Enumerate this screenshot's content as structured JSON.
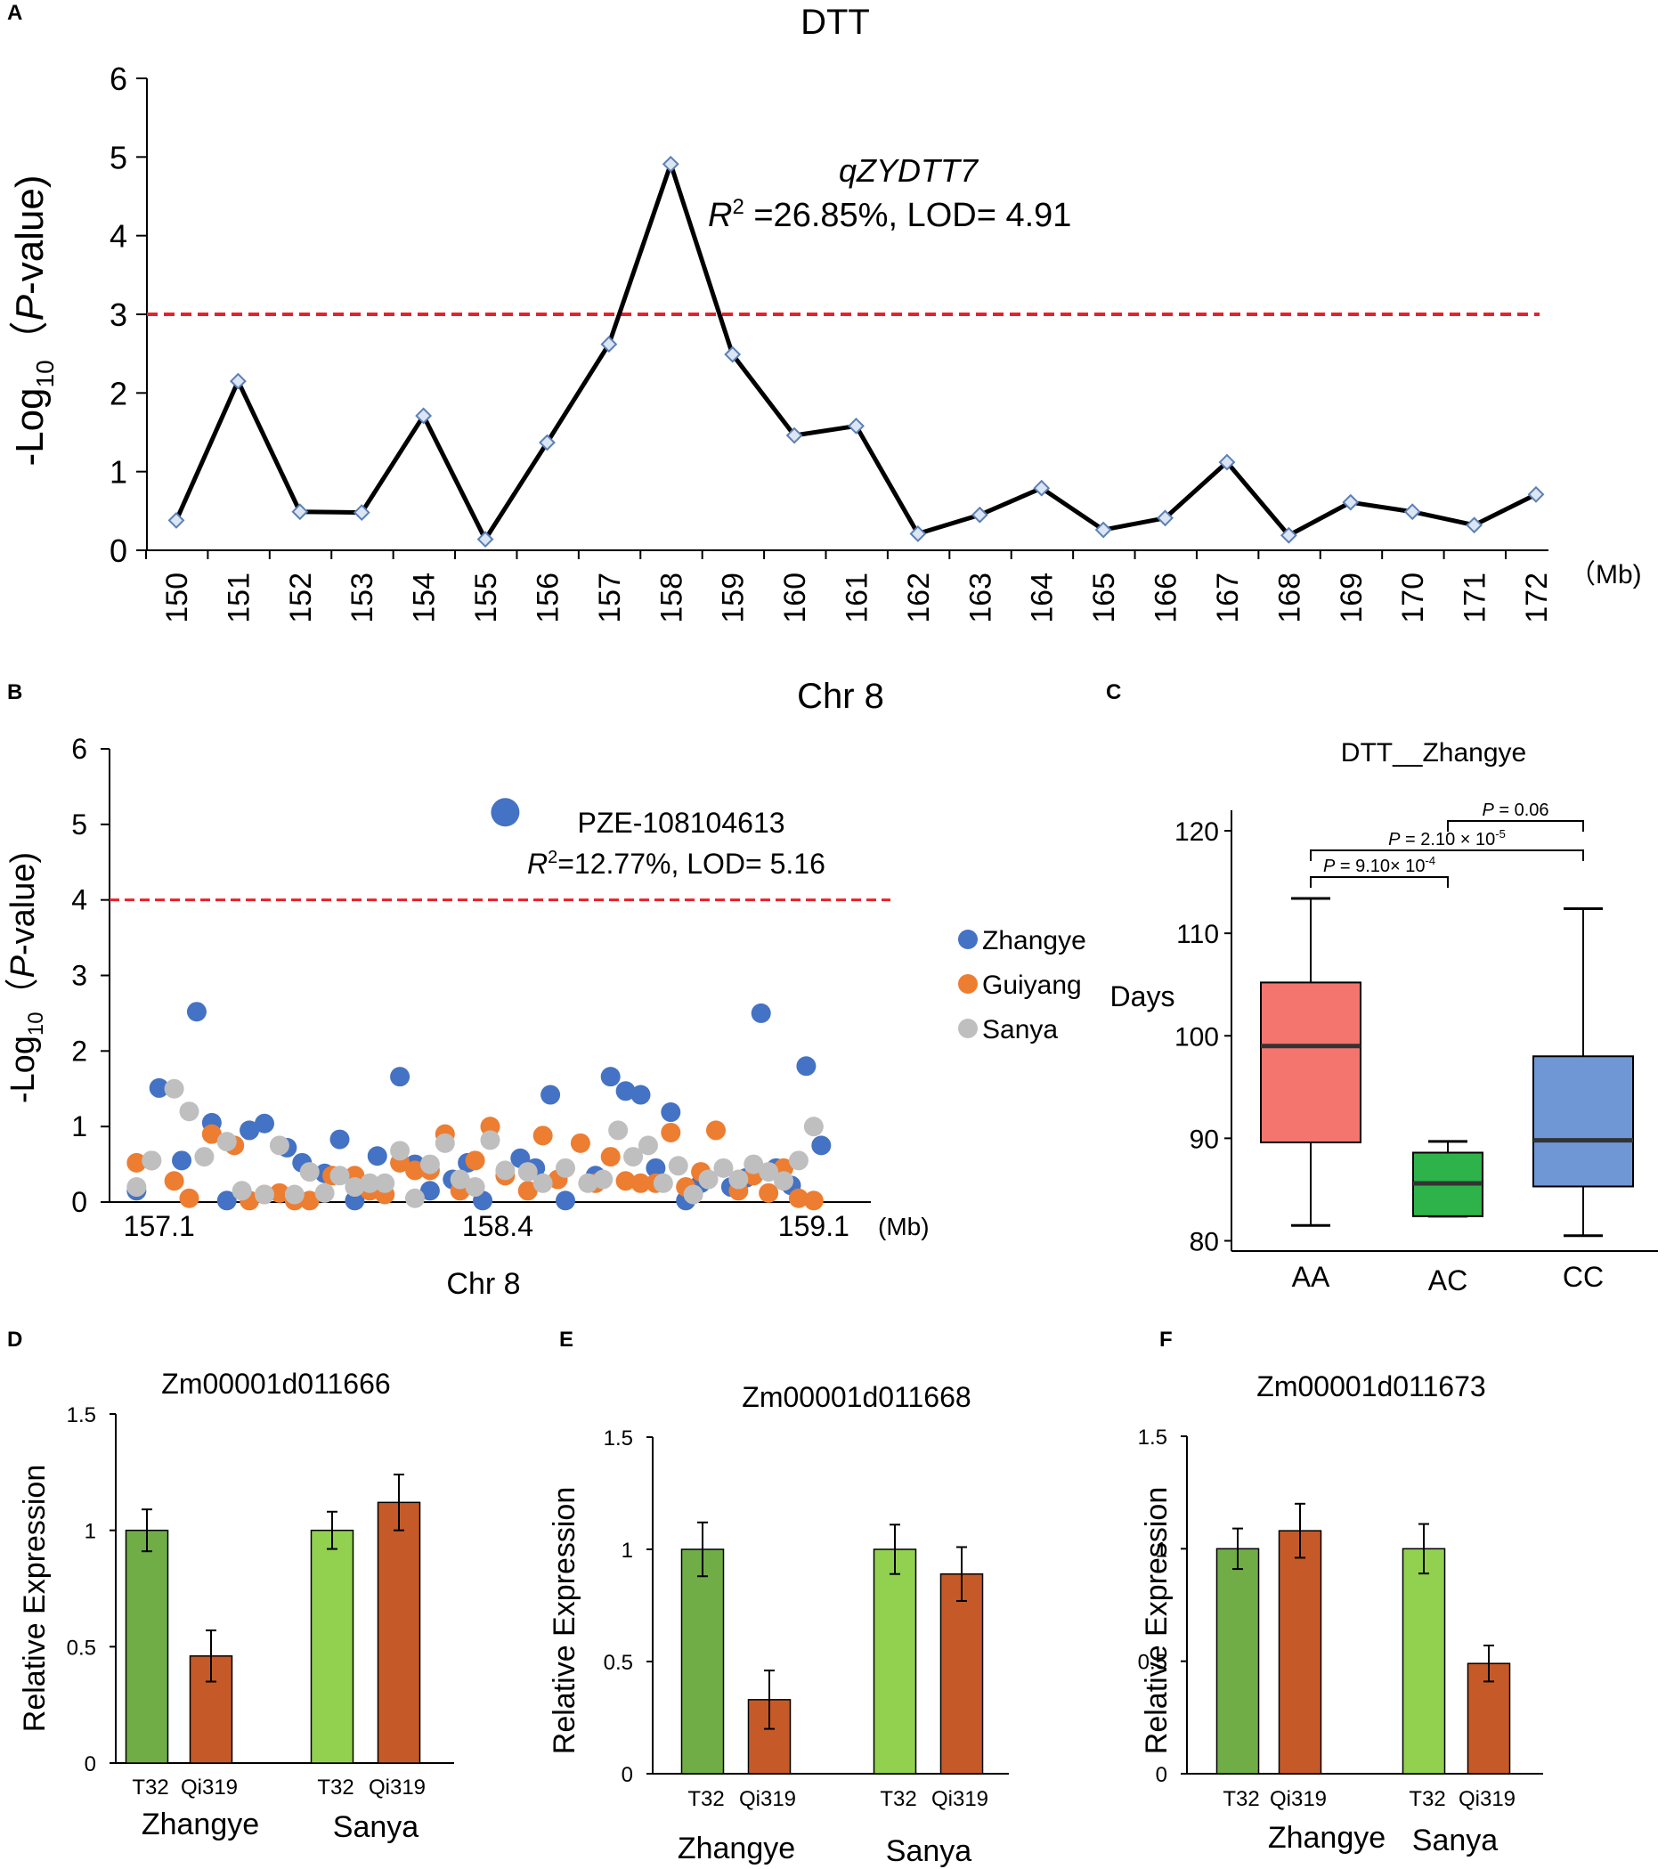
{
  "chart_data": [
    {
      "panel": "A",
      "type": "line",
      "title": "DTT",
      "ylabel_prefix": "-Log",
      "ylabel_sub": "10",
      "ylabel_paren_open": "（",
      "ylabel_italic": "P",
      "ylabel_suffix": "-value)",
      "unit_label": "（Mb)",
      "ylim": [
        0,
        6
      ],
      "yticks": [
        0,
        1,
        2,
        3,
        4,
        5,
        6
      ],
      "x": [
        150,
        151,
        152,
        153,
        154,
        155,
        156,
        157,
        158,
        159,
        160,
        161,
        162,
        163,
        164,
        165,
        166,
        167,
        168,
        169,
        170,
        171,
        172
      ],
      "values": [
        0.38,
        2.15,
        0.49,
        0.48,
        1.71,
        0.14,
        1.37,
        2.62,
        4.91,
        2.49,
        1.46,
        1.58,
        0.21,
        0.45,
        0.79,
        0.26,
        0.41,
        1.12,
        0.19,
        0.61,
        0.49,
        0.32,
        0.71
      ],
      "threshold": 3,
      "annotation_name": "qZYDTT7",
      "annotation_r2_label": "R",
      "annotation_r2_sup": "2",
      "annotation_rest": " =26.85%, LOD= 4.91",
      "colors": {
        "line": "#000000",
        "marker_fill": "#dbe5f3",
        "marker_stroke": "#5b7fb6",
        "threshold": "#e8202a"
      }
    },
    {
      "panel": "B",
      "type": "scatter",
      "title": "Chr 8",
      "xlabel": "Chr 8",
      "ylabel_prefix": "-Log",
      "ylabel_sub": "10",
      "ylabel_paren_open": "（",
      "ylabel_italic": "P",
      "ylabel_suffix": "-value)",
      "unit_label": "(Mb)",
      "ylim": [
        0,
        6
      ],
      "yticks": [
        0,
        1,
        2,
        3,
        4,
        5,
        6
      ],
      "xlim": [
        157.1,
        159.6
      ],
      "xticks": [
        "157.1",
        "158.4",
        "159.1"
      ],
      "xtick_index_positions": [
        0.06,
        0.51,
        0.93
      ],
      "threshold": 4,
      "annotation_marker": "PZE-108104613",
      "annotation_r2_label": "R",
      "annotation_r2_sup": "2",
      "annotation_rest": "=12.77%, LOD= 5.16",
      "peak": {
        "x_index": 0.52,
        "y": 5.16
      },
      "legend": [
        "Zhangye",
        "Guiyang",
        "Sanya"
      ],
      "series": [
        {
          "name": "Zhangye",
          "color": "#4472c4",
          "points": [
            [
              0.03,
              0.15
            ],
            [
              0.06,
              1.51
            ],
            [
              0.09,
              0.55
            ],
            [
              0.11,
              2.52
            ],
            [
              0.13,
              1.05
            ],
            [
              0.15,
              0.02
            ],
            [
              0.18,
              0.95
            ],
            [
              0.2,
              1.04
            ],
            [
              0.23,
              0.72
            ],
            [
              0.25,
              0.52
            ],
            [
              0.28,
              0.38
            ],
            [
              0.3,
              0.83
            ],
            [
              0.32,
              0.02
            ],
            [
              0.35,
              0.61
            ],
            [
              0.38,
              1.66
            ],
            [
              0.4,
              0.5
            ],
            [
              0.42,
              0.15
            ],
            [
              0.45,
              0.3
            ],
            [
              0.47,
              0.52
            ],
            [
              0.49,
              0.02
            ],
            [
              0.54,
              0.58
            ],
            [
              0.56,
              0.45
            ],
            [
              0.58,
              1.42
            ],
            [
              0.6,
              0.02
            ],
            [
              0.64,
              0.35
            ],
            [
              0.66,
              1.66
            ],
            [
              0.68,
              1.47
            ],
            [
              0.7,
              1.42
            ],
            [
              0.72,
              0.45
            ],
            [
              0.74,
              1.19
            ],
            [
              0.76,
              0.02
            ],
            [
              0.78,
              0.25
            ],
            [
              0.82,
              0.2
            ],
            [
              0.84,
              0.32
            ],
            [
              0.86,
              2.5
            ],
            [
              0.88,
              0.45
            ],
            [
              0.9,
              0.22
            ],
            [
              0.92,
              1.8
            ],
            [
              0.94,
              0.75
            ]
          ]
        },
        {
          "name": "Guiyang",
          "color": "#ed7d31",
          "points": [
            [
              0.03,
              0.52
            ],
            [
              0.05,
              0.55
            ],
            [
              0.08,
              0.28
            ],
            [
              0.1,
              0.05
            ],
            [
              0.13,
              0.9
            ],
            [
              0.16,
              0.75
            ],
            [
              0.18,
              0.02
            ],
            [
              0.2,
              0.1
            ],
            [
              0.22,
              0.12
            ],
            [
              0.24,
              0.02
            ],
            [
              0.26,
              0.02
            ],
            [
              0.29,
              0.35
            ],
            [
              0.32,
              0.35
            ],
            [
              0.34,
              0.15
            ],
            [
              0.36,
              0.1
            ],
            [
              0.38,
              0.52
            ],
            [
              0.4,
              0.42
            ],
            [
              0.42,
              0.42
            ],
            [
              0.44,
              0.9
            ],
            [
              0.46,
              0.15
            ],
            [
              0.48,
              0.55
            ],
            [
              0.5,
              1.0
            ],
            [
              0.52,
              0.35
            ],
            [
              0.55,
              0.15
            ],
            [
              0.57,
              0.88
            ],
            [
              0.59,
              0.3
            ],
            [
              0.62,
              0.78
            ],
            [
              0.64,
              0.25
            ],
            [
              0.66,
              0.6
            ],
            [
              0.68,
              0.28
            ],
            [
              0.7,
              0.25
            ],
            [
              0.72,
              0.25
            ],
            [
              0.74,
              0.92
            ],
            [
              0.76,
              0.2
            ],
            [
              0.78,
              0.4
            ],
            [
              0.8,
              0.95
            ],
            [
              0.83,
              0.15
            ],
            [
              0.85,
              0.35
            ],
            [
              0.87,
              0.12
            ],
            [
              0.89,
              0.45
            ],
            [
              0.91,
              0.05
            ],
            [
              0.93,
              0.02
            ]
          ]
        },
        {
          "name": "Sanya",
          "color": "#bfbfbf",
          "points": [
            [
              0.03,
              0.2
            ],
            [
              0.05,
              0.55
            ],
            [
              0.08,
              1.5
            ],
            [
              0.1,
              1.2
            ],
            [
              0.12,
              0.6
            ],
            [
              0.15,
              0.8
            ],
            [
              0.17,
              0.15
            ],
            [
              0.2,
              0.1
            ],
            [
              0.22,
              0.75
            ],
            [
              0.24,
              0.1
            ],
            [
              0.26,
              0.4
            ],
            [
              0.28,
              0.12
            ],
            [
              0.3,
              0.35
            ],
            [
              0.32,
              0.2
            ],
            [
              0.34,
              0.25
            ],
            [
              0.36,
              0.25
            ],
            [
              0.38,
              0.68
            ],
            [
              0.4,
              0.05
            ],
            [
              0.42,
              0.5
            ],
            [
              0.44,
              0.78
            ],
            [
              0.46,
              0.3
            ],
            [
              0.48,
              0.2
            ],
            [
              0.5,
              0.82
            ],
            [
              0.52,
              0.42
            ],
            [
              0.55,
              0.4
            ],
            [
              0.57,
              0.25
            ],
            [
              0.6,
              0.45
            ],
            [
              0.63,
              0.25
            ],
            [
              0.65,
              0.3
            ],
            [
              0.67,
              0.95
            ],
            [
              0.69,
              0.6
            ],
            [
              0.71,
              0.75
            ],
            [
              0.73,
              0.25
            ],
            [
              0.75,
              0.48
            ],
            [
              0.77,
              0.1
            ],
            [
              0.79,
              0.3
            ],
            [
              0.81,
              0.45
            ],
            [
              0.83,
              0.3
            ],
            [
              0.85,
              0.5
            ],
            [
              0.87,
              0.4
            ],
            [
              0.89,
              0.28
            ],
            [
              0.91,
              0.55
            ],
            [
              0.93,
              1.0
            ]
          ]
        }
      ]
    },
    {
      "panel": "C",
      "type": "box",
      "title": "DTT__Zhangye",
      "ylabel": "Days",
      "ylim": [
        79,
        122
      ],
      "yticks": [
        80,
        90,
        100,
        110,
        120
      ],
      "categories": [
        "AA",
        "AC",
        "CC"
      ],
      "boxes": [
        {
          "name": "AA",
          "min": 81.5,
          "q1": 89.6,
          "median": 99.0,
          "q3": 105.2,
          "max": 113.4,
          "color": "#f4756e"
        },
        {
          "name": "AC",
          "min": 82.4,
          "q1": 82.4,
          "median": 85.6,
          "q3": 88.6,
          "max": 89.7,
          "color": "#2eb34a"
        },
        {
          "name": "CC",
          "min": 80.5,
          "q1": 85.3,
          "median": 89.8,
          "q3": 98.0,
          "max": 112.4,
          "color": "#6f97d6"
        }
      ],
      "brackets": [
        {
          "from": "AA",
          "to": "AC",
          "prefix": "P",
          "text": " = 9.10× 10",
          "sup": "-4"
        },
        {
          "from": "AA",
          "to": "CC",
          "prefix": "P",
          "text": " = 2.10 × 10",
          "sup": "-5"
        },
        {
          "from": "AC",
          "to": "CC",
          "prefix": "P",
          "text": " = 0.06",
          "sup": ""
        }
      ]
    },
    {
      "panel": "D",
      "type": "bar",
      "title": "Zm00001d011666",
      "ylabel": "Relative Expression",
      "ylim": [
        0,
        1.5
      ],
      "yticks": [
        "0",
        "0.5",
        "1",
        "1.5"
      ],
      "groups": [
        "Zhangye",
        "Sanya"
      ],
      "bar_labels": [
        "T32",
        "Qi319"
      ],
      "series": [
        {
          "name": "T32",
          "values": [
            1.0,
            1.0
          ],
          "errors": [
            0.09,
            0.08
          ]
        },
        {
          "name": "Qi319",
          "values": [
            0.46,
            1.12
          ],
          "errors": [
            0.11,
            0.12
          ]
        }
      ],
      "colors": {
        "t32_zhangye": "#70ad47",
        "t32_sanya": "#92d050",
        "qi319": "#c55a28"
      }
    },
    {
      "panel": "E",
      "type": "bar",
      "title": "Zm00001d011668",
      "ylabel": "Relative Expression",
      "ylim": [
        0,
        1.5
      ],
      "yticks": [
        "0",
        "0.5",
        "1",
        "1.5"
      ],
      "groups": [
        "Zhangye",
        "Sanya"
      ],
      "bar_labels": [
        "T32",
        "Qi319"
      ],
      "series": [
        {
          "name": "T32",
          "values": [
            1.0,
            1.0
          ],
          "errors": [
            0.12,
            0.11
          ]
        },
        {
          "name": "Qi319",
          "values": [
            0.33,
            0.89
          ],
          "errors": [
            0.13,
            0.12
          ]
        }
      ],
      "colors": {
        "t32_zhangye": "#70ad47",
        "t32_sanya": "#92d050",
        "qi319": "#c55a28"
      }
    },
    {
      "panel": "F",
      "type": "bar",
      "title": "Zm00001d011673",
      "ylabel": "Relative Expression",
      "ylim": [
        0,
        1.5
      ],
      "yticks": [
        "0",
        "0.5",
        "1",
        "1.5"
      ],
      "groups": [
        "Zhangye",
        "Sanya"
      ],
      "bar_labels": [
        "T32",
        "Qi319"
      ],
      "series": [
        {
          "name": "T32",
          "values": [
            1.0,
            1.0
          ],
          "errors": [
            0.09,
            0.11
          ]
        },
        {
          "name": "Qi319",
          "values": [
            1.08,
            0.49
          ],
          "errors": [
            0.12,
            0.08
          ]
        }
      ],
      "colors": {
        "t32_zhangye": "#70ad47",
        "t32_sanya": "#92d050",
        "qi319": "#c55a28"
      }
    }
  ]
}
